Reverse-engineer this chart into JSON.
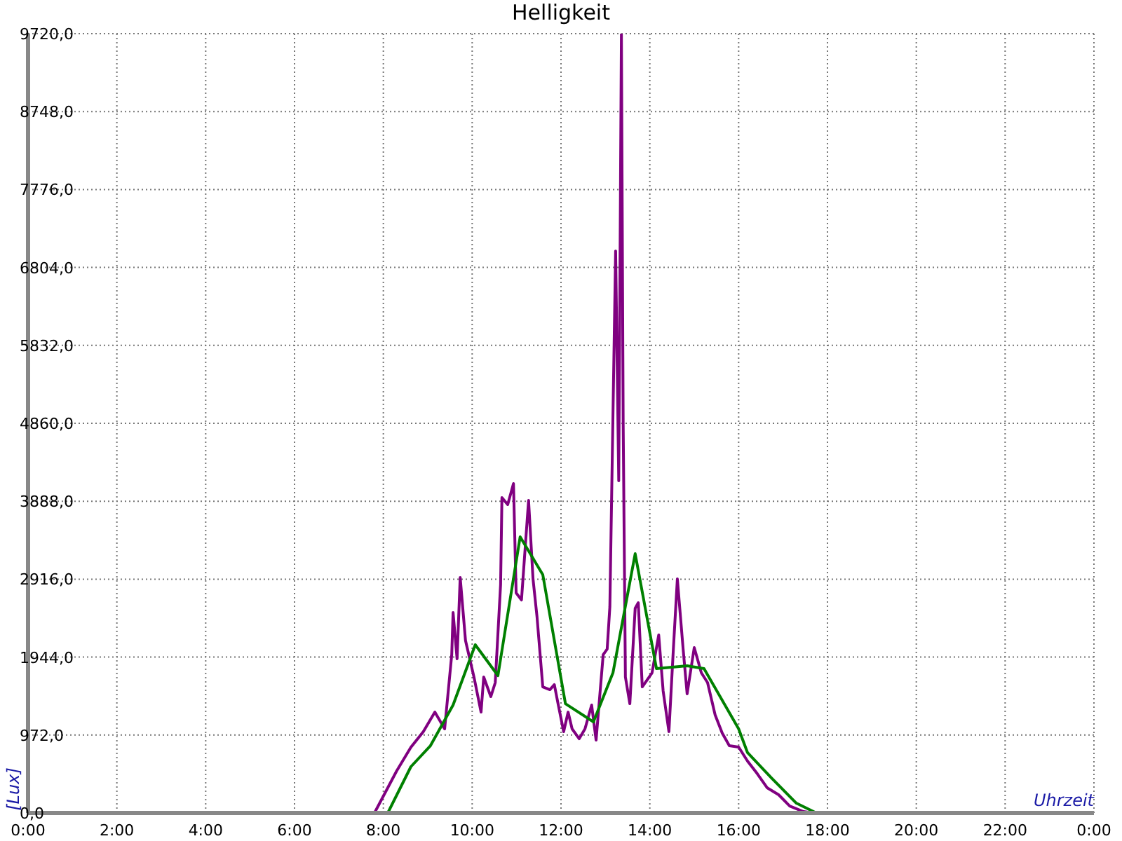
{
  "chart_data": {
    "type": "line",
    "title": "Helligkeit",
    "xlabel": "Uhrzeit",
    "ylabel": "[Lux]",
    "series": [
      {
        "color": "#800080",
        "x": [
          0,
          7.8,
          8.3,
          8.62,
          8.9,
          9.16,
          9.38,
          9.54,
          9.57,
          9.66,
          9.73,
          9.85,
          10.04,
          10.2,
          10.26,
          10.42,
          10.52,
          10.64,
          10.67,
          10.8,
          10.93,
          10.99,
          11.11,
          11.27,
          11.37,
          11.46,
          11.59,
          11.75,
          11.85,
          11.94,
          12.06,
          12.16,
          12.25,
          12.41,
          12.54,
          12.69,
          12.79,
          12.95,
          13.04,
          13.1,
          13.23,
          13.3,
          13.36,
          13.4,
          13.45,
          13.55,
          13.67,
          13.74,
          13.83,
          14.05,
          14.2,
          14.3,
          14.43,
          14.53,
          14.62,
          14.75,
          14.84,
          15.0,
          15.16,
          15.3,
          15.47,
          15.63,
          15.79,
          16.0,
          16.2,
          16.42,
          16.64,
          16.9,
          17.15,
          17.46,
          17.68,
          24
        ],
        "values": [
          0,
          0,
          524,
          820,
          1014,
          1258,
          1049,
          1975,
          2500,
          1923,
          2937,
          2150,
          1696,
          1258,
          1696,
          1451,
          1626,
          2849,
          3933,
          3846,
          4108,
          2744,
          2657,
          3898,
          2919,
          2447,
          1573,
          1538,
          1600,
          1346,
          1014,
          1258,
          1049,
          926,
          1049,
          1346,
          909,
          1975,
          2045,
          2570,
          7009,
          4143,
          9720,
          4860,
          1696,
          1363,
          2552,
          2622,
          1573,
          1748,
          2220,
          1521,
          1014,
          2045,
          2919,
          2045,
          1486,
          2063,
          1748,
          1626,
          1224,
          996,
          839,
          822,
          647,
          489,
          315,
          227,
          87,
          17,
          0,
          0
        ]
      },
      {
        "color": "#008000",
        "x": [
          0,
          8.1,
          8.62,
          9.06,
          9.57,
          10.07,
          10.58,
          11.08,
          11.59,
          12.1,
          12.73,
          13.17,
          13.67,
          14.15,
          14.84,
          15.22,
          16.0,
          16.2,
          16.74,
          17.3,
          17.75,
          24
        ],
        "values": [
          0,
          0,
          577,
          839,
          1346,
          2098,
          1713,
          3444,
          2972,
          1363,
          1136,
          1748,
          3234,
          1800,
          1835,
          1800,
          1049,
          752,
          437,
          122,
          0,
          0
        ]
      }
    ],
    "xlim": [
      0,
      24
    ],
    "xticks": [
      {
        "value": 0,
        "label": "0:00"
      },
      {
        "value": 2,
        "label": "2:00"
      },
      {
        "value": 4,
        "label": "4:00"
      },
      {
        "value": 6,
        "label": "6:00"
      },
      {
        "value": 8,
        "label": "8:00"
      },
      {
        "value": 10,
        "label": "10:00"
      },
      {
        "value": 12,
        "label": "12:00"
      },
      {
        "value": 14,
        "label": "14:00"
      },
      {
        "value": 16,
        "label": "16:00"
      },
      {
        "value": 18,
        "label": "18:00"
      },
      {
        "value": 20,
        "label": "20:00"
      },
      {
        "value": 22,
        "label": "22:00"
      },
      {
        "value": 24,
        "label": "0:00"
      }
    ],
    "ylim": [
      0,
      9720
    ],
    "yticks": [
      {
        "value": 0,
        "label": "0,0"
      },
      {
        "value": 972,
        "label": "972,0"
      },
      {
        "value": 1944,
        "label": "1944,0"
      },
      {
        "value": 2916,
        "label": "2916,0"
      },
      {
        "value": 3888,
        "label": "3888,0"
      },
      {
        "value": 4860,
        "label": "4860,0"
      },
      {
        "value": 5832,
        "label": "5832,0"
      },
      {
        "value": 6804,
        "label": "6804,0"
      },
      {
        "value": 7776,
        "label": "7776,0"
      },
      {
        "value": 8748,
        "label": "8748,0"
      },
      {
        "value": 9720,
        "label": "9720,0"
      }
    ],
    "grid": true,
    "marker": "none",
    "line_style": "solid"
  }
}
